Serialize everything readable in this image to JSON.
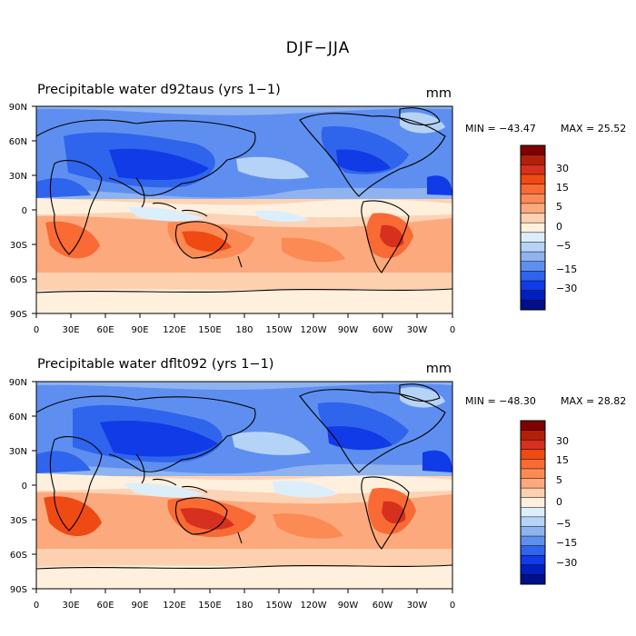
{
  "figure": {
    "title": "DJF−JJA",
    "units": "mm"
  },
  "panels": [
    {
      "id": "p1",
      "title": "Precipitable water  d92taus (yrs 1−1)",
      "min_label": "MIN = −43.47",
      "max_label": "MAX =  25.52"
    },
    {
      "id": "p2",
      "title": "Precipitable water  dflt092 (yrs 1−1)",
      "min_label": "MIN = −48.30",
      "max_label": "MAX =  28.82"
    }
  ],
  "axes": {
    "lat_labels": [
      "90N",
      "60N",
      "30N",
      "0",
      "30S",
      "60S",
      "90S"
    ],
    "lon_labels": [
      "0",
      "30E",
      "60E",
      "90E",
      "120E",
      "150E",
      "180",
      "150W",
      "120W",
      "90W",
      "60W",
      "30W",
      "0"
    ]
  },
  "colorbar": {
    "colors": [
      "#ff7f00",
      "#ff7f00"
    ],
    "bin_colors_top_to_bottom": [
      "#7f0000",
      "#b2200a",
      "#d7301f",
      "#ef4a14",
      "#f96a34",
      "#fb8a55",
      "#fca97d",
      "#fdd0b0",
      "#fff0de",
      "#ddeefb",
      "#b5d3f6",
      "#8eb3ef",
      "#5e8ff0",
      "#2f64ec",
      "#103be6",
      "#001fbf",
      "#000f8c"
    ],
    "tick_labels": [
      "30",
      "15",
      "5",
      "0",
      "−5",
      "−15",
      "−30"
    ]
  },
  "chart_data": {
    "type": "heatmap",
    "title": "DJF−JJA",
    "units": "mm",
    "variable": "Precipitable water",
    "x_range": [
      0,
      360
    ],
    "y_range": [
      -90,
      90
    ],
    "panels": [
      {
        "case": "d92taus (yrs 1−1)",
        "min": -43.47,
        "max": 25.52
      },
      {
        "case": "dflt092 (yrs 1−1)",
        "min": -48.3,
        "max": 28.82
      }
    ],
    "contour_levels": [
      -30,
      -15,
      -5,
      0,
      5,
      15,
      30
    ]
  }
}
